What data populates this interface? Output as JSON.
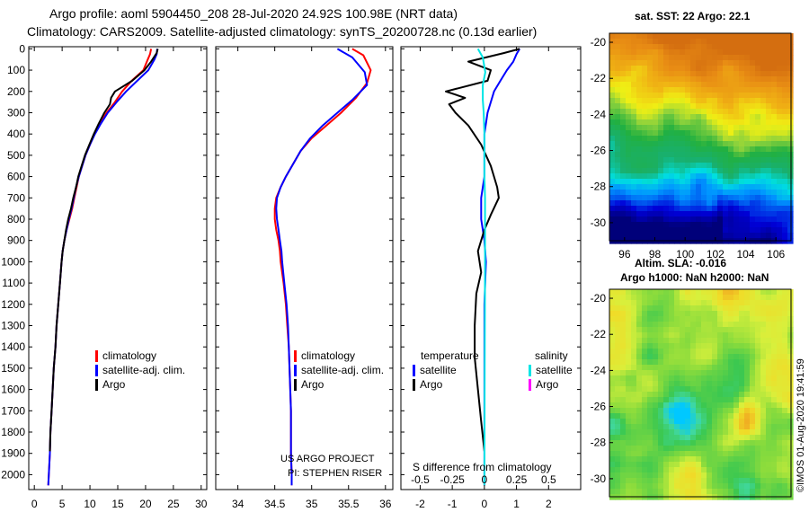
{
  "header": {
    "line1": "Argo profile: aoml 5904450_208 28-Jul-2020 24.92S 100.98E (NRT data)",
    "line2": "Climatology: CARS2009. Satellite-adjusted climatology: synTS_20200728.nc (0.13d earlier)"
  },
  "colors": {
    "climatology": "#ff0000",
    "satellite": "#0000ff",
    "argo": "#000000",
    "salinity_satellite": "#00e5e5",
    "salinity_argo": "#ff00ff"
  },
  "depth_ticks": [
    "0",
    "100",
    "200",
    "300",
    "400",
    "500",
    "600",
    "700",
    "800",
    "900",
    "1000",
    "1100",
    "1200",
    "1300",
    "1400",
    "1500",
    "1600",
    "1700",
    "1800",
    "1900",
    "2000"
  ],
  "chart_data": [
    {
      "type": "line",
      "name": "temperature",
      "xlim": [
        -1,
        31
      ],
      "ylim": [
        2070,
        -10
      ],
      "xticks": [
        "0",
        "5",
        "10",
        "15",
        "20",
        "25",
        "30"
      ],
      "xtick_values": [
        0,
        5,
        10,
        15,
        20,
        25,
        30
      ],
      "legend": [
        "climatology",
        "satellite-adj. clim.",
        "Argo"
      ],
      "series": [
        {
          "name": "climatology",
          "color": "red",
          "points": [
            [
              21.0,
              0
            ],
            [
              20.8,
              25
            ],
            [
              20.4,
              50
            ],
            [
              19.6,
              100
            ],
            [
              17.5,
              150
            ],
            [
              15.8,
              200
            ],
            [
              14.5,
              250
            ],
            [
              13.0,
              300
            ],
            [
              11.8,
              350
            ],
            [
              10.8,
              400
            ],
            [
              10.0,
              450
            ],
            [
              9.2,
              500
            ],
            [
              8.6,
              550
            ],
            [
              8.0,
              600
            ],
            [
              7.6,
              650
            ],
            [
              7.2,
              700
            ],
            [
              6.8,
              750
            ],
            [
              6.3,
              800
            ],
            [
              5.8,
              850
            ],
            [
              5.4,
              900
            ],
            [
              5.1,
              950
            ],
            [
              4.9,
              1000
            ],
            [
              4.6,
              1100
            ],
            [
              4.3,
              1200
            ],
            [
              4.0,
              1300
            ],
            [
              3.8,
              1400
            ],
            [
              3.5,
              1500
            ],
            [
              3.3,
              1600
            ],
            [
              3.1,
              1700
            ],
            [
              2.9,
              1800
            ],
            [
              2.8,
              1900
            ],
            [
              2.6,
              2000
            ],
            [
              2.5,
              2050
            ]
          ]
        },
        {
          "name": "satellite-adj. clim.",
          "color": "blue",
          "points": [
            [
              22.1,
              0
            ],
            [
              22.0,
              25
            ],
            [
              21.6,
              50
            ],
            [
              20.5,
              100
            ],
            [
              18.5,
              150
            ],
            [
              16.5,
              200
            ],
            [
              14.8,
              250
            ],
            [
              13.2,
              300
            ],
            [
              12.0,
              350
            ],
            [
              10.9,
              400
            ],
            [
              10.0,
              450
            ],
            [
              9.2,
              500
            ],
            [
              8.6,
              550
            ],
            [
              8.0,
              600
            ],
            [
              7.5,
              650
            ],
            [
              7.1,
              700
            ],
            [
              6.7,
              750
            ],
            [
              6.2,
              800
            ],
            [
              5.8,
              850
            ],
            [
              5.4,
              900
            ],
            [
              5.1,
              950
            ],
            [
              4.9,
              1000
            ],
            [
              4.6,
              1100
            ],
            [
              4.3,
              1200
            ],
            [
              4.0,
              1300
            ],
            [
              3.8,
              1400
            ],
            [
              3.5,
              1500
            ],
            [
              3.3,
              1600
            ],
            [
              3.1,
              1700
            ],
            [
              2.9,
              1800
            ],
            [
              2.8,
              1900
            ],
            [
              2.6,
              2000
            ],
            [
              2.5,
              2050
            ]
          ]
        },
        {
          "name": "Argo",
          "color": "black",
          "points": [
            [
              22.2,
              0
            ],
            [
              22.0,
              20
            ],
            [
              21.0,
              60
            ],
            [
              19.8,
              100
            ],
            [
              17.6,
              150
            ],
            [
              14.5,
              200
            ],
            [
              13.8,
              230
            ],
            [
              13.6,
              260
            ],
            [
              12.6,
              300
            ],
            [
              11.6,
              350
            ],
            [
              10.7,
              400
            ],
            [
              9.9,
              450
            ],
            [
              9.1,
              500
            ],
            [
              8.5,
              550
            ],
            [
              7.9,
              600
            ],
            [
              7.5,
              650
            ],
            [
              7.0,
              700
            ],
            [
              6.6,
              750
            ],
            [
              6.1,
              800
            ],
            [
              5.7,
              850
            ],
            [
              5.4,
              900
            ],
            [
              5.1,
              950
            ],
            [
              4.9,
              1000
            ],
            [
              4.6,
              1100
            ],
            [
              4.3,
              1200
            ],
            [
              4.0,
              1300
            ],
            [
              3.8,
              1400
            ],
            [
              3.5,
              1500
            ],
            [
              3.3,
              1600
            ],
            [
              3.1,
              1700
            ],
            [
              2.9,
              1800
            ],
            [
              2.8,
              1890
            ]
          ]
        }
      ]
    },
    {
      "type": "line",
      "name": "salinity",
      "xlim": [
        33.7,
        36.1
      ],
      "ylim": [
        2070,
        -10
      ],
      "xticks": [
        "34",
        "34.5",
        "35",
        "35.5",
        "36"
      ],
      "xtick_values": [
        34,
        34.5,
        35,
        35.5,
        36
      ],
      "legend": [
        "climatology",
        "satellite-adj. clim.",
        "Argo"
      ],
      "annotations": [
        "US ARGO PROJECT",
        "PI: STEPHEN RISER"
      ],
      "series": [
        {
          "name": "climatology",
          "color": "red",
          "points": [
            [
              35.55,
              0
            ],
            [
              35.7,
              30
            ],
            [
              35.8,
              100
            ],
            [
              35.75,
              160
            ],
            [
              35.6,
              230
            ],
            [
              35.4,
              300
            ],
            [
              35.2,
              360
            ],
            [
              35.0,
              420
            ],
            [
              34.85,
              480
            ],
            [
              34.75,
              540
            ],
            [
              34.65,
              600
            ],
            [
              34.58,
              650
            ],
            [
              34.52,
              700
            ],
            [
              34.5,
              750
            ],
            [
              34.5,
              800
            ],
            [
              34.52,
              850
            ],
            [
              34.55,
              900
            ],
            [
              34.57,
              950
            ],
            [
              34.58,
              1000
            ],
            [
              34.62,
              1100
            ],
            [
              34.65,
              1200
            ],
            [
              34.67,
              1300
            ],
            [
              34.69,
              1400
            ],
            [
              34.7,
              1500
            ],
            [
              34.71,
              1600
            ],
            [
              34.72,
              1700
            ],
            [
              34.72,
              1800
            ],
            [
              34.72,
              1900
            ],
            [
              34.73,
              2000
            ],
            [
              34.73,
              2050
            ]
          ]
        },
        {
          "name": "satellite-adj. clim.",
          "color": "blue",
          "points": [
            [
              35.35,
              0
            ],
            [
              35.55,
              40
            ],
            [
              35.72,
              110
            ],
            [
              35.75,
              170
            ],
            [
              35.55,
              240
            ],
            [
              35.35,
              300
            ],
            [
              35.15,
              360
            ],
            [
              34.98,
              420
            ],
            [
              34.85,
              480
            ],
            [
              34.75,
              540
            ],
            [
              34.65,
              600
            ],
            [
              34.58,
              650
            ],
            [
              34.53,
              700
            ],
            [
              34.52,
              750
            ],
            [
              34.53,
              800
            ],
            [
              34.55,
              850
            ],
            [
              34.57,
              900
            ],
            [
              34.59,
              950
            ],
            [
              34.6,
              1000
            ],
            [
              34.63,
              1100
            ],
            [
              34.66,
              1200
            ],
            [
              34.68,
              1300
            ],
            [
              34.69,
              1400
            ],
            [
              34.7,
              1500
            ],
            [
              34.71,
              1600
            ],
            [
              34.72,
              1700
            ],
            [
              34.72,
              1800
            ],
            [
              34.72,
              1900
            ],
            [
              34.73,
              2000
            ],
            [
              34.73,
              2050
            ]
          ]
        },
        {
          "name": "Argo",
          "color": "black",
          "points": []
        }
      ]
    },
    {
      "type": "line",
      "name": "difference from climatology",
      "xlim": [
        -2.6,
        3.0
      ],
      "ylim": [
        2070,
        -10
      ],
      "xticks": [
        "-2",
        "-1",
        "0",
        "1",
        "2"
      ],
      "xtick_values": [
        -2,
        -1,
        0,
        1,
        2
      ],
      "sticks": [
        "-0.5",
        "-0.25",
        "0",
        "0.25",
        "0.5"
      ],
      "stick_values": [
        -0.5,
        -0.25,
        0,
        0.25,
        0.5
      ],
      "xlabel": "S difference from climatology",
      "legend_temperature": [
        "temperature",
        "satellite",
        "Argo"
      ],
      "legend_salinity": [
        "salinity",
        "satellite",
        "Argo"
      ],
      "series": [
        {
          "name": "temperature satellite",
          "color": "blue",
          "points": [
            [
              1.1,
              0
            ],
            [
              1.0,
              25
            ],
            [
              0.9,
              60
            ],
            [
              0.7,
              100
            ],
            [
              0.5,
              150
            ],
            [
              0.3,
              200
            ],
            [
              0.1,
              300
            ],
            [
              0.0,
              400
            ],
            [
              0.0,
              500
            ],
            [
              0.0,
              600
            ],
            [
              -0.1,
              700
            ],
            [
              -0.1,
              800
            ],
            [
              0.0,
              900
            ],
            [
              0.05,
              1000
            ],
            [
              0.0,
              1200
            ],
            [
              0.0,
              1500
            ],
            [
              0.0,
              1800
            ],
            [
              0.0,
              2050
            ]
          ]
        },
        {
          "name": "temperature Argo",
          "color": "black",
          "points": [
            [
              1.1,
              0
            ],
            [
              0.6,
              20
            ],
            [
              -0.5,
              60
            ],
            [
              0.2,
              100
            ],
            [
              0.1,
              150
            ],
            [
              -1.2,
              200
            ],
            [
              -0.6,
              230
            ],
            [
              -1.1,
              260
            ],
            [
              -0.9,
              300
            ],
            [
              -0.5,
              360
            ],
            [
              -0.1,
              450
            ],
            [
              0.2,
              550
            ],
            [
              0.4,
              650
            ],
            [
              0.45,
              700
            ],
            [
              0.2,
              780
            ],
            [
              0.0,
              850
            ],
            [
              -0.2,
              950
            ],
            [
              -0.1,
              1050
            ],
            [
              -0.25,
              1150
            ],
            [
              -0.3,
              1300
            ],
            [
              -0.3,
              1450
            ],
            [
              -0.2,
              1600
            ],
            [
              -0.1,
              1750
            ],
            [
              0.0,
              1890
            ]
          ]
        },
        {
          "name": "salinity satellite",
          "color": "cyan",
          "points": [
            [
              -0.2,
              0
            ],
            [
              -0.05,
              40
            ],
            [
              0.03,
              110
            ],
            [
              -0.05,
              170
            ],
            [
              -0.05,
              240
            ],
            [
              -0.02,
              300
            ],
            [
              0.0,
              400
            ],
            [
              0.0,
              600
            ],
            [
              0.02,
              700
            ],
            [
              0.02,
              800
            ],
            [
              0.02,
              1000
            ],
            [
              0.01,
              1500
            ],
            [
              0.0,
              2050
            ]
          ]
        },
        {
          "name": "salinity Argo",
          "color": "magenta",
          "points": []
        }
      ]
    },
    {
      "type": "heatmap",
      "name": "sat. SST map",
      "title": "sat. SST: 22 Argo: 22.1",
      "xticks": [
        "96",
        "98",
        "100",
        "102",
        "104",
        "106"
      ],
      "yticks": [
        "-20",
        "-22",
        "-24",
        "-26",
        "-28",
        "-30"
      ],
      "xlim": [
        95,
        107
      ],
      "ylim": [
        -31,
        -19.5
      ]
    },
    {
      "type": "heatmap",
      "name": "altimetry SLA map",
      "title_line1": "Altim. SLA: -0.016",
      "title_line2": "Argo h1000: NaN h2000: NaN",
      "yticks": [
        "-20",
        "-22",
        "-24",
        "-26",
        "-28",
        "-30"
      ],
      "ylim": [
        -31,
        -19.5
      ]
    }
  ],
  "footer": {
    "stamp": "©IMOS 01-Aug-2020 19:41:59"
  }
}
